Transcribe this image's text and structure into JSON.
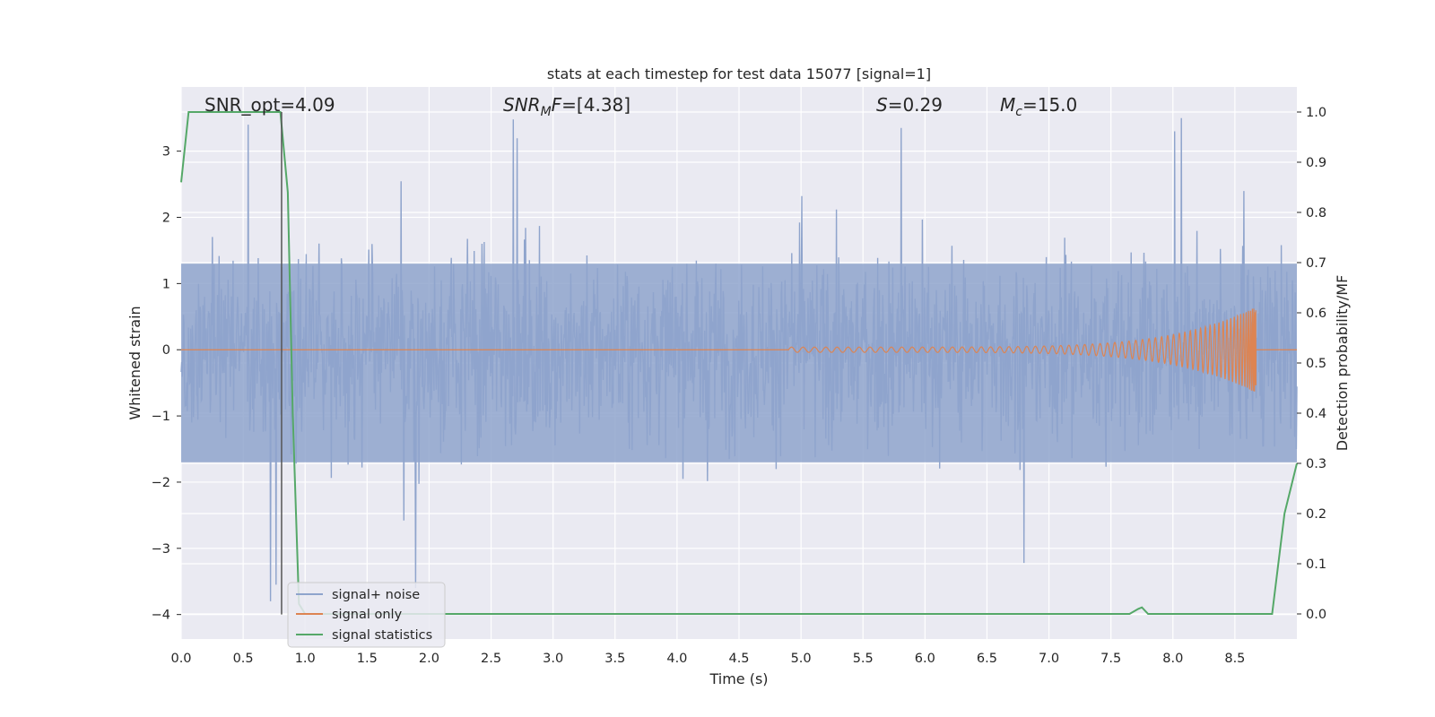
{
  "chart_data": {
    "type": "line",
    "title": "stats at each timestep for test data 15077 [signal=1]",
    "xlabel": "Time (s)",
    "ylabel_left": "Whitened strain",
    "ylabel_right": "Detection probability/MF",
    "xlim": [
      0.0,
      9.0
    ],
    "ylim_left": [
      -4.37,
      3.97
    ],
    "ylim_right": [
      -0.05,
      1.05
    ],
    "grid": true,
    "legend_position": "lower-left",
    "x_ticks": [
      "0.0",
      "0.5",
      "1.0",
      "1.5",
      "2.0",
      "2.5",
      "3.0",
      "3.5",
      "4.0",
      "4.5",
      "5.0",
      "5.5",
      "6.0",
      "6.5",
      "7.0",
      "7.5",
      "8.0",
      "8.5"
    ],
    "y_left_ticks": [
      "−4",
      "−3",
      "−2",
      "−1",
      "0",
      "1",
      "2",
      "3"
    ],
    "y_right_ticks": [
      "0.0",
      "0.1",
      "0.2",
      "0.3",
      "0.4",
      "0.5",
      "0.6",
      "0.7",
      "0.8",
      "0.9",
      "1.0"
    ],
    "annotations": {
      "snr_opt": "SNR_opt=4.09",
      "snr_mf_sym": "SNR",
      "snr_mf_sub": "M",
      "snr_mf_f": "F",
      "snr_mf_val": "=[4.38]",
      "s_sym": "S",
      "s_val": "=0.29",
      "mc_sym": "M",
      "mc_sub": "c",
      "mc_val": "=15.0"
    },
    "vertical_marker_x": 0.81,
    "series": [
      {
        "name": "signal+ noise",
        "color": "#8fa4cc",
        "description_values": {
          "sample_count": 2000,
          "typical_band": [
            -1.7,
            1.3
          ],
          "max_peaks": [
            3.4,
            3.48,
            3.35,
            3.3
          ],
          "min_peaks": [
            -3.8,
            -3.55,
            -3.6,
            -3.22
          ]
        }
      },
      {
        "name": "signal only",
        "color": "#dd8452",
        "chirp": {
          "start_x": 4.9,
          "end_x": 8.67,
          "max_amplitude": 0.65
        }
      },
      {
        "name": "signal statistics",
        "color": "#55a868",
        "axis": "right",
        "x": [
          0.0,
          0.06,
          0.1,
          0.8,
          0.86,
          0.9,
          0.95,
          1.0,
          1.2,
          7.0,
          7.65,
          7.72,
          7.75,
          7.8,
          8.0,
          8.8,
          8.85,
          8.9,
          9.0
        ],
        "y": [
          0.86,
          1.0,
          1.0,
          1.0,
          0.84,
          0.4,
          0.02,
          0.0,
          0.0,
          0.0,
          0.0,
          0.01,
          0.013,
          0.0,
          0.0,
          0.0,
          0.1,
          0.2,
          0.3
        ]
      }
    ]
  }
}
